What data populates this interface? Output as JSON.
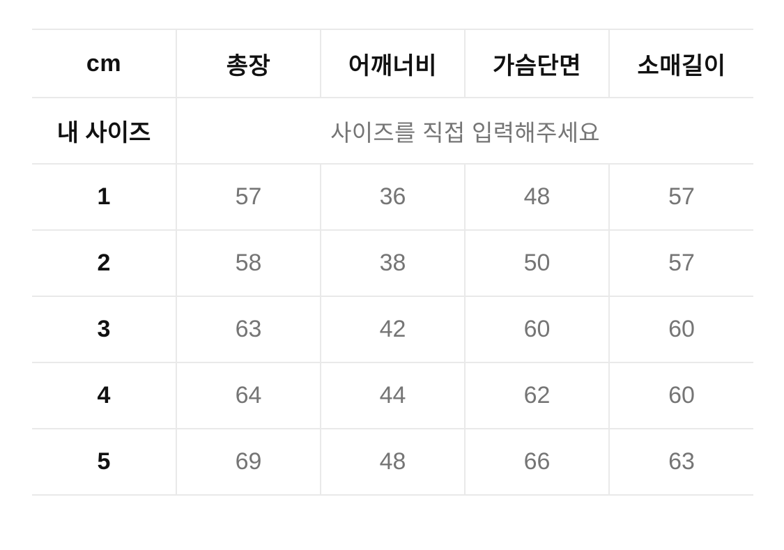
{
  "size_chart": {
    "unit_header": "cm",
    "columns": [
      "총장",
      "어깨너비",
      "가슴단면",
      "소매길이"
    ],
    "my_size_row": {
      "label": "내 사이즈",
      "placeholder": "사이즈를 직접 입력해주세요"
    },
    "rows": [
      {
        "size": "1",
        "values": [
          "57",
          "36",
          "48",
          "57"
        ]
      },
      {
        "size": "2",
        "values": [
          "58",
          "38",
          "50",
          "57"
        ]
      },
      {
        "size": "3",
        "values": [
          "63",
          "42",
          "60",
          "60"
        ]
      },
      {
        "size": "4",
        "values": [
          "64",
          "44",
          "62",
          "60"
        ]
      },
      {
        "size": "5",
        "values": [
          "69",
          "48",
          "66",
          "63"
        ]
      }
    ],
    "colors": {
      "header_text": "#111111",
      "value_text": "#757575",
      "placeholder_text": "#757575",
      "border": "#e9e9e9",
      "background": "#ffffff"
    }
  }
}
